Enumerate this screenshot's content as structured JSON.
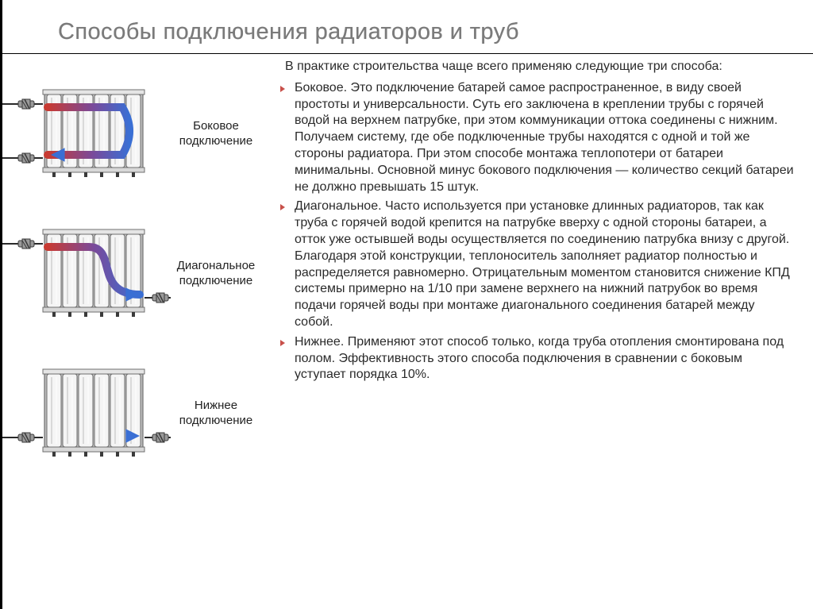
{
  "title": "Способы подключения радиаторов и труб",
  "intro": "В практике строительства чаще всего применяю следующие три способа:",
  "bullets": [
    "Боковое. Это подключение батарей самое распространенное, в виду своей простоты и универсальности. Суть его заключена в креплении трубы с горячей водой на верхнем патрубке, при этом коммуникации оттока соединены с нижним. Получаем систему, где обе подключенные трубы находятся с одной и той же стороны радиатора. При этом способе монтажа теплопотери от батареи минимальны. Основной минус бокового подключения — количество секций батареи не должно превышать 15 штук.",
    "Диагональное. Часто используется при установке длинных радиаторов, так как труба с горячей водой крепится на патрубке вверху с одной стороны батареи, а отток уже остывшей воды осуществляется по соединению патрубка внизу с другой. Благодаря этой конструкции, теплоноситель заполняет радиатор полностью и распределяется равномерно. Отрицательным моментом становится снижение КПД системы примерно на 1/10 при замене верхнего на нижний патрубок во время подачи горячей воды при монтаже диагонального соединения батарей между собой.",
    "Нижнее. Применяют этот способ только, когда труба отопления смонтирована под полом. Эффективность этого способа подключения в сравнении с боковым уступает порядка 10%."
  ],
  "diagrams": [
    {
      "label": "Боковое подключение",
      "type": "side"
    },
    {
      "label": "Диагональное подключение",
      "type": "diagonal"
    },
    {
      "label": "Нижнее подключение",
      "type": "bottom"
    }
  ],
  "style": {
    "radiator": {
      "sections": 6,
      "body_fill": "#f5f5f5",
      "body_stroke": "#6f6f6f",
      "shadow": "#bdbdbd",
      "foot": "#3a3a3a"
    },
    "arrow": {
      "hot": "#c83a32",
      "cold": "#3a6fd4",
      "mid": "#7a4a9a",
      "stroke_width": 10
    },
    "pipe": {
      "color": "#2a2a2a",
      "width": 2
    },
    "fitting": {
      "fill": "#9a9a9a",
      "stroke": "#3a3a3a"
    }
  }
}
